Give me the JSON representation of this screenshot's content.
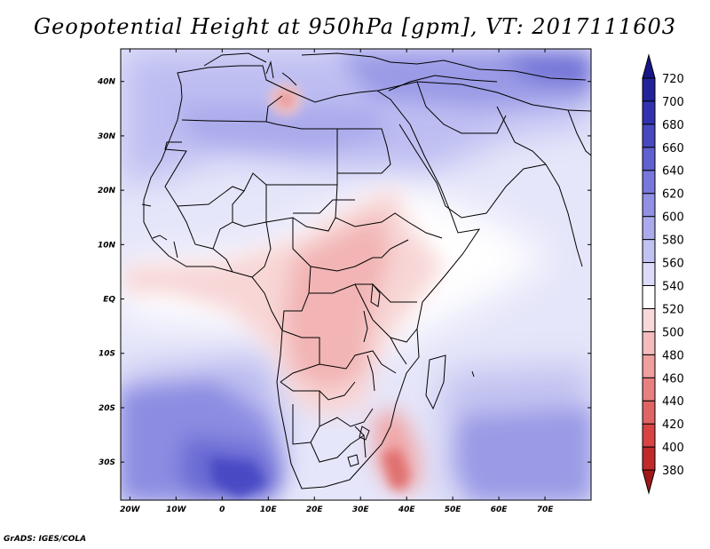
{
  "title": "Geopotential Height at 950hPa [gpm], VT: 2017111603",
  "credit": "GrADS: IGES/COLA",
  "map": {
    "lon_range": [
      -22,
      80
    ],
    "lat_range": [
      -37,
      46
    ],
    "x_ticks": [
      {
        "value": -20,
        "label": "20W"
      },
      {
        "value": -10,
        "label": "10W"
      },
      {
        "value": 0,
        "label": "0"
      },
      {
        "value": 10,
        "label": "10E"
      },
      {
        "value": 20,
        "label": "20E"
      },
      {
        "value": 30,
        "label": "30E"
      },
      {
        "value": 40,
        "label": "40E"
      },
      {
        "value": 50,
        "label": "50E"
      },
      {
        "value": 60,
        "label": "60E"
      },
      {
        "value": 70,
        "label": "70E"
      }
    ],
    "y_ticks": [
      {
        "value": 40,
        "label": "40N"
      },
      {
        "value": 30,
        "label": "30N"
      },
      {
        "value": 20,
        "label": "20N"
      },
      {
        "value": 10,
        "label": "10N"
      },
      {
        "value": 0,
        "label": "EQ"
      },
      {
        "value": -10,
        "label": "10S"
      },
      {
        "value": -20,
        "label": "20S"
      },
      {
        "value": -30,
        "label": "30S"
      }
    ]
  },
  "colorbar": {
    "levels": [
      380,
      400,
      420,
      440,
      460,
      480,
      500,
      520,
      540,
      560,
      580,
      600,
      620,
      640,
      660,
      680,
      700,
      720
    ],
    "colors": [
      "#a01818",
      "#c02a2a",
      "#d84444",
      "#e06464",
      "#e88080",
      "#f09e9e",
      "#f4bcbc",
      "#f8d8d8",
      "#ffffff",
      "#dcdcf8",
      "#c2c2f2",
      "#aaaaec",
      "#9090e4",
      "#7878dc",
      "#6060d0",
      "#4848c0",
      "#3232b0",
      "#22229a",
      "#161688"
    ]
  }
}
